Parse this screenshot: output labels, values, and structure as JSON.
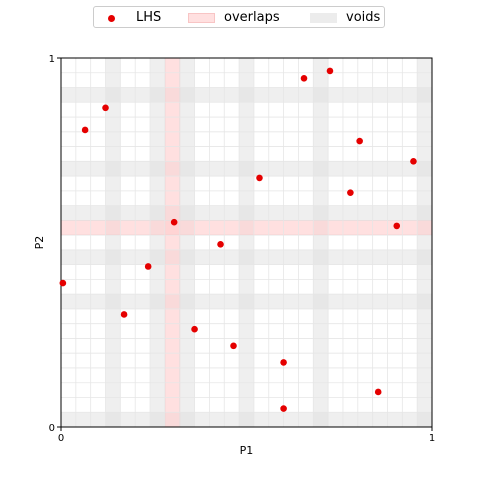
{
  "chart_data": {
    "type": "scatter",
    "xlabel": "P1",
    "ylabel": "P2",
    "xlim": [
      0,
      1
    ],
    "ylim": [
      0,
      1
    ],
    "xticks": [
      "0",
      "1"
    ],
    "yticks": [
      "0",
      "1"
    ],
    "grid": true,
    "legend_position": "top-center",
    "n_bins": 25,
    "series": [
      {
        "name": "LHS",
        "color": "#e50000",
        "x": [
          0.005,
          0.065,
          0.12,
          0.17,
          0.235,
          0.305,
          0.36,
          0.43,
          0.465,
          0.535,
          0.6,
          0.6,
          0.655,
          0.725,
          0.78,
          0.805,
          0.855,
          0.905,
          0.95
        ],
        "y": [
          0.39,
          0.805,
          0.865,
          0.305,
          0.435,
          0.555,
          0.265,
          0.495,
          0.22,
          0.675,
          0.175,
          0.05,
          0.945,
          0.965,
          0.635,
          0.775,
          0.095,
          0.545,
          0.72
        ]
      }
    ],
    "overlaps": {
      "label": "overlaps",
      "color": "#ffcccc",
      "x_bins": [
        7
      ],
      "y_bins": [
        13
      ]
    },
    "voids": {
      "label": "voids",
      "color": "#e0e0e0",
      "x_bins": [
        3,
        6,
        8,
        12,
        17,
        24
      ],
      "y_bins": [
        0,
        8,
        11,
        14,
        17,
        22
      ]
    }
  }
}
